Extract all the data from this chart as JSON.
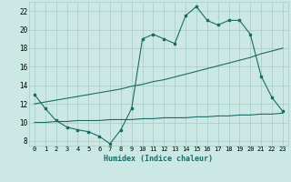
{
  "xlabel": "Humidex (Indice chaleur)",
  "xlim": [
    -0.5,
    23.5
  ],
  "ylim": [
    7.5,
    23.0
  ],
  "xticks": [
    0,
    1,
    2,
    3,
    4,
    5,
    6,
    7,
    8,
    9,
    10,
    11,
    12,
    13,
    14,
    15,
    16,
    17,
    18,
    19,
    20,
    21,
    22,
    23
  ],
  "yticks": [
    8,
    10,
    12,
    14,
    16,
    18,
    20,
    22
  ],
  "bg_color": "#cce8e4",
  "grid_color": "#aacfcc",
  "line_color": "#1a6b68",
  "line1_x": [
    0,
    1,
    2,
    3,
    4,
    5,
    6,
    7,
    8,
    9,
    10,
    11,
    12,
    13,
    14,
    15,
    16,
    17,
    18,
    19,
    20,
    21,
    22,
    23
  ],
  "line1_y": [
    13.0,
    11.5,
    10.2,
    9.5,
    9.2,
    9.0,
    8.5,
    7.7,
    9.2,
    11.5,
    19.0,
    19.5,
    19.0,
    18.5,
    21.5,
    22.5,
    21.0,
    20.5,
    21.0,
    21.0,
    19.5,
    15.0,
    12.7,
    11.2
  ],
  "line2_x": [
    0,
    1,
    2,
    3,
    4,
    5,
    6,
    7,
    8,
    9,
    10,
    11,
    12,
    13,
    14,
    15,
    16,
    17,
    18,
    19,
    20,
    21,
    22,
    23
  ],
  "line2_y": [
    12.0,
    12.2,
    12.4,
    12.6,
    12.8,
    13.0,
    13.2,
    13.4,
    13.6,
    13.9,
    14.1,
    14.4,
    14.6,
    14.9,
    15.2,
    15.5,
    15.8,
    16.1,
    16.4,
    16.7,
    17.0,
    17.4,
    17.7,
    18.0
  ],
  "line3_x": [
    0,
    1,
    2,
    3,
    4,
    5,
    6,
    7,
    8,
    9,
    10,
    11,
    12,
    13,
    14,
    15,
    16,
    17,
    18,
    19,
    20,
    21,
    22,
    23
  ],
  "line3_y": [
    10.0,
    10.0,
    10.1,
    10.1,
    10.2,
    10.2,
    10.2,
    10.3,
    10.3,
    10.3,
    10.4,
    10.4,
    10.5,
    10.5,
    10.5,
    10.6,
    10.6,
    10.7,
    10.7,
    10.8,
    10.8,
    10.9,
    10.9,
    11.0
  ]
}
